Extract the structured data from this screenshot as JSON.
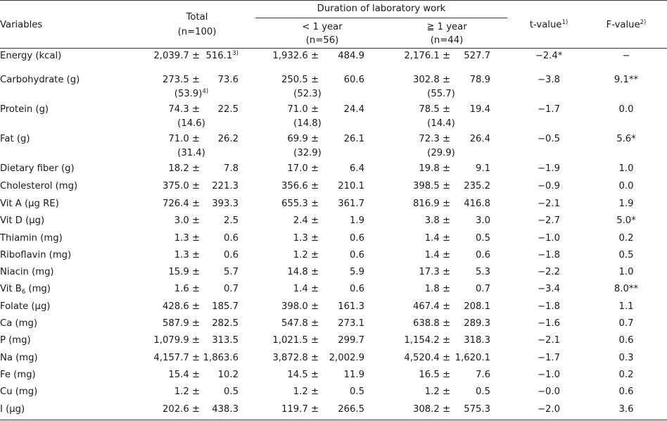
{
  "header": {
    "variables": "Variables",
    "total": "Total",
    "total_n": "(n=100)",
    "duration": "Duration of laboratory work",
    "lt1": "< 1 year",
    "lt1_n": "(n=56)",
    "ge1": "≧ 1 year",
    "ge1_n": "(n=44)",
    "t": "t-value",
    "t_sup": "1)",
    "f": "F-value",
    "f_sup": "2)"
  },
  "rows": [
    {
      "label": "Energy (kcal)",
      "label_sub": "",
      "label_after": "",
      "tm": "2,039.7 ±",
      "ts": "516.1",
      "ts_sup": "3)",
      "tp": "",
      "tp_sup": "",
      "am": "1,932.6 ±",
      "as": "484.9",
      "ap": "",
      "bm": "2,176.1 ±",
      "bs": "527.7",
      "bp": "",
      "t": "−2.4*",
      "f": "−"
    },
    {
      "label": "Carbohydrate (g)",
      "label_sub": "",
      "label_after": "",
      "tm": "273.5 ±",
      "ts": "73.6",
      "ts_sup": "",
      "tp": "(53.9)",
      "tp_sup": "4)",
      "am": "250.5 ±",
      "as": "60.6",
      "ap": "(52.3)",
      "bm": "302.8 ±",
      "bs": "78.9",
      "bp": "(55.7)",
      "t": "−3.8",
      "f": "9.1**"
    },
    {
      "label": "Protein (g)",
      "label_sub": "",
      "label_after": "",
      "tm": "74.3 ±",
      "ts": "22.5",
      "ts_sup": "",
      "tp": "(14.6)",
      "tp_sup": "",
      "am": "71.0 ±",
      "as": "24.4",
      "ap": "(14.8)",
      "bm": "78.5 ±",
      "bs": "19.4",
      "bp": "(14.4)",
      "t": "−1.7",
      "f": "0.0"
    },
    {
      "label": "Fat (g)",
      "label_sub": "",
      "label_after": "",
      "tm": "71.0 ±",
      "ts": "26.2",
      "ts_sup": "",
      "tp": "(31.4)",
      "tp_sup": "",
      "am": "69.9 ±",
      "as": "26.1",
      "ap": "(32.9)",
      "bm": "72.3 ±",
      "bs": "26.4",
      "bp": "(29.9)",
      "t": "−0.5",
      "f": "5.6*"
    },
    {
      "label": "Dietary fiber (g)",
      "label_sub": "",
      "label_after": "",
      "tm": "18.2 ±",
      "ts": "7.8",
      "ts_sup": "",
      "tp": "",
      "tp_sup": "",
      "am": "17.0 ±",
      "as": "6.4",
      "ap": "",
      "bm": "19.8 ±",
      "bs": "9.1",
      "bp": "",
      "t": "−1.9",
      "f": "1.0"
    },
    {
      "label": "Cholesterol (mg)",
      "label_sub": "",
      "label_after": "",
      "tm": "375.0 ±",
      "ts": "221.3",
      "ts_sup": "",
      "tp": "",
      "tp_sup": "",
      "am": "356.6 ±",
      "as": "210.1",
      "ap": "",
      "bm": "398.5 ±",
      "bs": "235.2",
      "bp": "",
      "t": "−0.9",
      "f": "0.0"
    },
    {
      "label": "Vit A (μg RE)",
      "label_sub": "",
      "label_after": "",
      "tm": "726.4 ±",
      "ts": "393.3",
      "ts_sup": "",
      "tp": "",
      "tp_sup": "",
      "am": "655.3 ±",
      "as": "361.7",
      "ap": "",
      "bm": "816.9 ±",
      "bs": "416.8",
      "bp": "",
      "t": "−2.1",
      "f": "1.9"
    },
    {
      "label": "Vit D (μg)",
      "label_sub": "",
      "label_after": "",
      "tm": "3.0 ±",
      "ts": "2.5",
      "ts_sup": "",
      "tp": "",
      "tp_sup": "",
      "am": "2.4 ±",
      "as": "1.9",
      "ap": "",
      "bm": "3.8 ±",
      "bs": "3.0",
      "bp": "",
      "t": "−2.7",
      "f": "5.0*"
    },
    {
      "label": "Thiamin (mg)",
      "label_sub": "",
      "label_after": "",
      "tm": "1.3 ±",
      "ts": "0.6",
      "ts_sup": "",
      "tp": "",
      "tp_sup": "",
      "am": "1.3 ±",
      "as": "0.6",
      "ap": "",
      "bm": "1.4 ±",
      "bs": "0.5",
      "bp": "",
      "t": "−1.0",
      "f": "0.2"
    },
    {
      "label": "Riboflavin (mg)",
      "label_sub": "",
      "label_after": "",
      "tm": "1.3 ±",
      "ts": "0.6",
      "ts_sup": "",
      "tp": "",
      "tp_sup": "",
      "am": "1.2 ±",
      "as": "0.6",
      "ap": "",
      "bm": "1.4 ±",
      "bs": "0.6",
      "bp": "",
      "t": "−1.8",
      "f": "0.5"
    },
    {
      "label": "Niacin (mg)",
      "label_sub": "",
      "label_after": "",
      "tm": "15.9 ±",
      "ts": "5.7",
      "ts_sup": "",
      "tp": "",
      "tp_sup": "",
      "am": "14.8 ±",
      "as": "5.9",
      "ap": "",
      "bm": "17.3 ±",
      "bs": "5.3",
      "bp": "",
      "t": "−2.2",
      "f": "1.0"
    },
    {
      "label": "Vit B",
      "label_sub": "6",
      "label_after": " (mg)",
      "tm": "1.6 ±",
      "ts": "0.7",
      "ts_sup": "",
      "tp": "",
      "tp_sup": "",
      "am": "1.4 ±",
      "as": "0.6",
      "ap": "",
      "bm": "1.8 ±",
      "bs": "0.7",
      "bp": "",
      "t": "−3.4",
      "f": "8.0**"
    },
    {
      "label": "Folate (μg)",
      "label_sub": "",
      "label_after": "",
      "tm": "428.6 ±",
      "ts": "185.7",
      "ts_sup": "",
      "tp": "",
      "tp_sup": "",
      "am": "398.0 ±",
      "as": "161.3",
      "ap": "",
      "bm": "467.4 ±",
      "bs": "208.1",
      "bp": "",
      "t": "−1.8",
      "f": "1.1"
    },
    {
      "label": "Ca (mg)",
      "label_sub": "",
      "label_after": "",
      "tm": "587.9 ±",
      "ts": "282.5",
      "ts_sup": "",
      "tp": "",
      "tp_sup": "",
      "am": "547.8 ±",
      "as": "273.1",
      "ap": "",
      "bm": "638.8 ±",
      "bs": "289.3",
      "bp": "",
      "t": "−1.6",
      "f": "0.7"
    },
    {
      "label": "P (mg)",
      "label_sub": "",
      "label_after": "",
      "tm": "1,079.9 ±",
      "ts": "313.5",
      "ts_sup": "",
      "tp": "",
      "tp_sup": "",
      "am": "1,021.5 ±",
      "as": "299.7",
      "ap": "",
      "bm": "1,154.2 ±",
      "bs": "318.3",
      "bp": "",
      "t": "−2.1",
      "f": "0.6"
    },
    {
      "label": "Na (mg)",
      "label_sub": "",
      "label_after": "",
      "tm": "4,157.7 ±",
      "ts": "1,863.6",
      "ts_sup": "",
      "tp": "",
      "tp_sup": "",
      "am": "3,872.8 ±",
      "as": "2,002.9",
      "ap": "",
      "bm": "4,520.4 ±",
      "bs": "1,620.1",
      "bp": "",
      "t": "−1.7",
      "f": "0.3"
    },
    {
      "label": "Fe (mg)",
      "label_sub": "",
      "label_after": "",
      "tm": "15.4 ±",
      "ts": "10.2",
      "ts_sup": "",
      "tp": "",
      "tp_sup": "",
      "am": "14.5 ±",
      "as": "11.9",
      "ap": "",
      "bm": "16.5 ±",
      "bs": "7.6",
      "bp": "",
      "t": "−1.0",
      "f": "0.2"
    },
    {
      "label": "Cu (mg)",
      "label_sub": "",
      "label_after": "",
      "tm": "1.2 ±",
      "ts": "0.5",
      "ts_sup": "",
      "tp": "",
      "tp_sup": "",
      "am": "1.2 ±",
      "as": "0.5",
      "ap": "",
      "bm": "1.2 ±",
      "bs": "0.5",
      "bp": "",
      "t": "−0.0",
      "f": "0.6"
    },
    {
      "label": "I (μg)",
      "label_sub": "",
      "label_after": "",
      "tm": "202.6 ±",
      "ts": "438.3",
      "ts_sup": "",
      "tp": "",
      "tp_sup": "",
      "am": "119.7 ±",
      "as": "266.5",
      "ap": "",
      "bm": "308.2 ±",
      "bs": "575.3",
      "bp": "",
      "t": "−2.0",
      "f": "3.6"
    }
  ]
}
